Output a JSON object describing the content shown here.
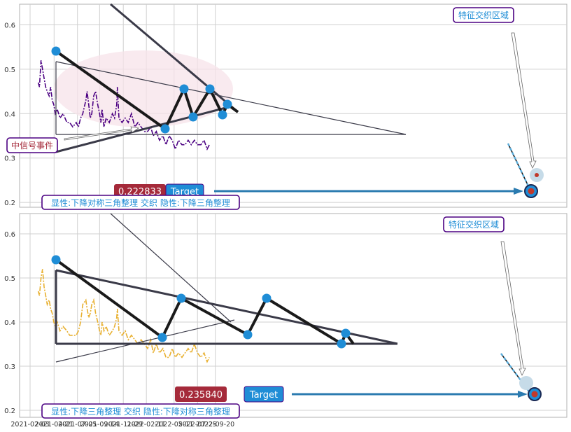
{
  "colors": {
    "panel_bg": "#ffffff",
    "grid": "#d0d0d0",
    "frame": "#b0b0b0",
    "top_series": "#4b0082",
    "bottom_series": "#e8b030",
    "pattern_dark": "#1a1a1a",
    "pattern_grey": "#3a3a48",
    "pivot": "#1f8dd6",
    "target_arrow": "#2b7bb0",
    "value_box": "#a52a3a",
    "target_box": "#1f8dd6",
    "label_border": "#4b0082",
    "ellipse": "#f7e3ea"
  },
  "chart_data": [
    {
      "type": "line",
      "panel": "top",
      "x_ticks": [],
      "y_ticks": [
        "0.6",
        "0.5",
        "0.4",
        "0.3",
        "0.2"
      ],
      "ylim": [
        0.19,
        0.645
      ],
      "grid": true,
      "series": [
        {
          "x": [
            "2021-03-01",
            "2021-03-05",
            "2021-03-10",
            "2021-03-15",
            "2021-03-20",
            "2021-03-25",
            "2021-03-30",
            "2021-04-05",
            "2021-04-10",
            "2021-04-15",
            "2021-04-20",
            "2021-04-25",
            "2021-05-01",
            "2021-05-10",
            "2021-05-20",
            "2021-06-01",
            "2021-06-10",
            "2021-06-20",
            "2021-07-01",
            "2021-07-08",
            "2021-07-15",
            "2021-07-22",
            "2021-08-01",
            "2021-08-05",
            "2021-08-10",
            "2021-08-15",
            "2021-08-20",
            "2021-08-26",
            "2021-09-01",
            "2021-09-08",
            "2021-09-14",
            "2021-09-18",
            "2021-09-22",
            "2021-09-28",
            "2021-10-05",
            "2021-10-15",
            "2021-10-25",
            "2021-11-01",
            "2021-11-08",
            "2021-11-10",
            "2021-11-15",
            "2021-11-25",
            "2021-12-05",
            "2021-12-15",
            "2021-12-25",
            "2022-01-05",
            "2022-01-15",
            "2022-01-25",
            "2022-02-05",
            "2022-02-15",
            "2022-02-25",
            "2022-03-05",
            "2022-03-15",
            "2022-03-25",
            "2022-04-05",
            "2022-04-15",
            "2022-04-25",
            "2022-05-05",
            "2022-05-15",
            "2022-05-25",
            "2022-06-05",
            "2022-06-15",
            "2022-06-25",
            "2022-07-05",
            "2022-07-15",
            "2022-07-25",
            "2022-08-05",
            "2022-08-15",
            "2022-08-25",
            "2022-09-01"
          ],
          "values": [
            0.47,
            0.46,
            0.52,
            0.5,
            0.48,
            0.46,
            0.45,
            0.44,
            0.46,
            0.43,
            0.42,
            0.4,
            0.41,
            0.39,
            0.4,
            0.38,
            0.38,
            0.37,
            0.38,
            0.37,
            0.39,
            0.4,
            0.43,
            0.45,
            0.42,
            0.39,
            0.4,
            0.44,
            0.45,
            0.42,
            0.4,
            0.38,
            0.41,
            0.37,
            0.39,
            0.38,
            0.4,
            0.39,
            0.42,
            0.46,
            0.39,
            0.38,
            0.39,
            0.38,
            0.4,
            0.37,
            0.38,
            0.37,
            0.36,
            0.36,
            0.37,
            0.35,
            0.36,
            0.34,
            0.35,
            0.33,
            0.35,
            0.34,
            0.32,
            0.34,
            0.33,
            0.33,
            0.34,
            0.33,
            0.34,
            0.33,
            0.33,
            0.34,
            0.32,
            0.33
          ]
        }
      ],
      "annotations": [
        {
          "kind": "value-box",
          "text": "0.222833"
        },
        {
          "kind": "target-box",
          "text": "Target"
        },
        {
          "kind": "label",
          "text": "中信号事件"
        },
        {
          "kind": "label",
          "text": "特征交织区域"
        },
        {
          "kind": "caption",
          "text": "显性:下降对称三角整理 交织 隐性:下降三角整理"
        }
      ],
      "target_value": 0.222833
    },
    {
      "type": "line",
      "panel": "bottom",
      "x_ticks": [
        "2021-02-03",
        "2021-04-21",
        "2021-07-05",
        "2021-09-14",
        "2021-11-29",
        "2022-02-11",
        "2022-05-11",
        "2022-07-25",
        "2022-09-20"
      ],
      "y_ticks": [
        "0.6",
        "0.5",
        "0.4",
        "0.3",
        "0.2"
      ],
      "ylim": [
        0.19,
        0.645
      ],
      "grid": true,
      "series": [
        {
          "x": [
            "2021-03-01",
            "2021-03-05",
            "2021-03-10",
            "2021-03-15",
            "2021-03-20",
            "2021-03-25",
            "2021-03-30",
            "2021-04-05",
            "2021-04-10",
            "2021-04-15",
            "2021-04-20",
            "2021-04-25",
            "2021-05-01",
            "2021-05-10",
            "2021-05-20",
            "2021-06-01",
            "2021-06-10",
            "2021-06-20",
            "2021-07-01",
            "2021-07-08",
            "2021-07-15",
            "2021-07-22",
            "2021-08-01",
            "2021-08-05",
            "2021-08-10",
            "2021-08-15",
            "2021-08-20",
            "2021-08-26",
            "2021-09-01",
            "2021-09-08",
            "2021-09-14",
            "2021-09-18",
            "2021-09-22",
            "2021-09-28",
            "2021-10-05",
            "2021-10-15",
            "2021-10-25",
            "2021-11-01",
            "2021-11-08",
            "2021-11-10",
            "2021-11-15",
            "2021-11-25",
            "2021-12-05",
            "2021-12-15",
            "2021-12-25",
            "2022-01-05",
            "2022-01-15",
            "2022-01-25",
            "2022-02-05",
            "2022-02-15",
            "2022-02-25",
            "2022-03-05",
            "2022-03-15",
            "2022-03-25",
            "2022-04-05",
            "2022-04-15",
            "2022-04-25",
            "2022-05-05",
            "2022-05-15",
            "2022-05-25",
            "2022-06-05",
            "2022-06-15",
            "2022-06-25",
            "2022-07-05",
            "2022-07-15",
            "2022-07-25",
            "2022-08-05",
            "2022-08-15",
            "2022-08-25",
            "2022-09-01"
          ],
          "values": [
            0.47,
            0.46,
            0.5,
            0.52,
            0.48,
            0.46,
            0.44,
            0.45,
            0.43,
            0.42,
            0.4,
            0.39,
            0.4,
            0.38,
            0.39,
            0.38,
            0.37,
            0.37,
            0.37,
            0.38,
            0.4,
            0.44,
            0.45,
            0.43,
            0.41,
            0.42,
            0.44,
            0.45,
            0.42,
            0.4,
            0.38,
            0.37,
            0.4,
            0.38,
            0.39,
            0.37,
            0.38,
            0.39,
            0.41,
            0.43,
            0.38,
            0.37,
            0.38,
            0.36,
            0.37,
            0.36,
            0.35,
            0.36,
            0.35,
            0.34,
            0.36,
            0.33,
            0.35,
            0.33,
            0.34,
            0.32,
            0.32,
            0.34,
            0.32,
            0.33,
            0.32,
            0.33,
            0.34,
            0.33,
            0.35,
            0.33,
            0.32,
            0.33,
            0.31,
            0.32
          ]
        }
      ],
      "annotations": [
        {
          "kind": "value-box",
          "text": "0.235840"
        },
        {
          "kind": "target-box",
          "text": "Target"
        },
        {
          "kind": "label",
          "text": "特征交织区域"
        },
        {
          "kind": "caption",
          "text": "显性:下降三角整理 交织 隐性:下降对称三角整理"
        }
      ],
      "target_value": 0.23584
    }
  ]
}
